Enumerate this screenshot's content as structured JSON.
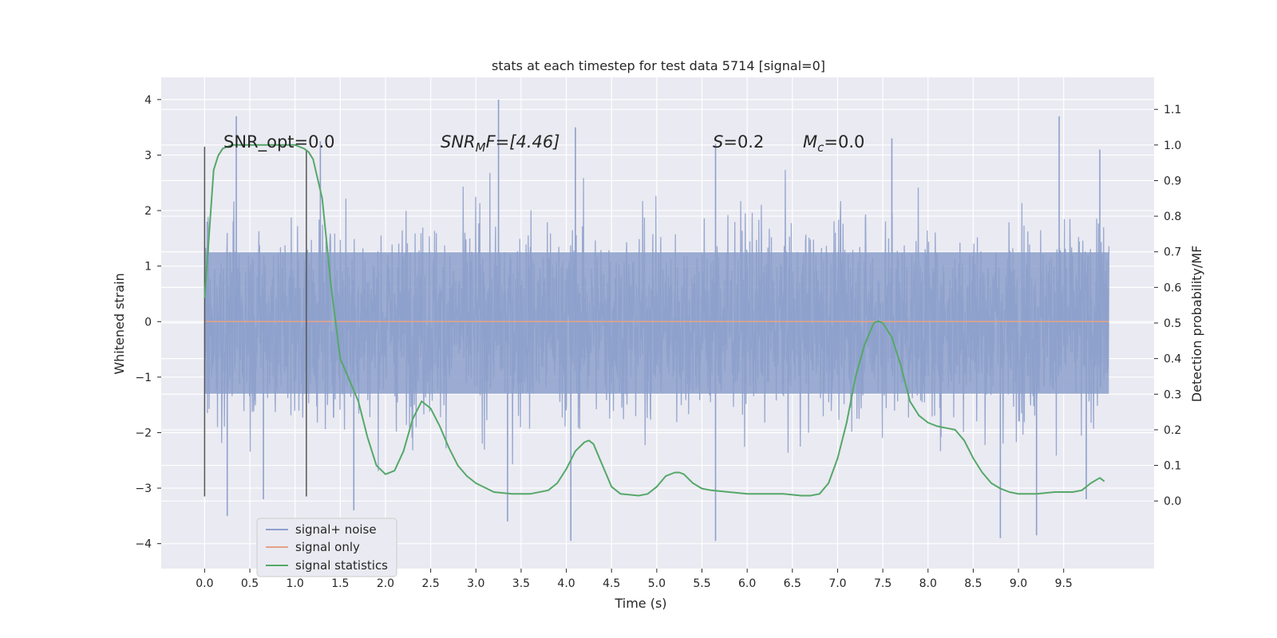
{
  "chart_data": {
    "type": "line",
    "title": "stats at each timestep for test data 5714 [signal=0]",
    "xlabel": "Time (s)",
    "ylabel": "Whitened strain",
    "y2label": "Detection probability/MF",
    "xlim": [
      -0.48,
      10.5
    ],
    "ylim": [
      -4.45,
      4.4
    ],
    "y2lim": [
      -0.19,
      1.19
    ],
    "x_ticks": [
      "0.0",
      "0.5",
      "1.0",
      "1.5",
      "2.0",
      "2.5",
      "3.0",
      "3.5",
      "4.0",
      "4.5",
      "5.0",
      "5.5",
      "6.0",
      "6.5",
      "7.0",
      "7.5",
      "8.0",
      "8.5",
      "9.0",
      "9.5"
    ],
    "y_ticks": [
      "−4",
      "−3",
      "−2",
      "−1",
      "0",
      "1",
      "2",
      "3",
      "4"
    ],
    "y2_ticks": [
      "0.0",
      "0.1",
      "0.2",
      "0.3",
      "0.4",
      "0.5",
      "0.6",
      "0.7",
      "0.8",
      "0.9",
      "1.0",
      "1.1"
    ],
    "grid": true,
    "legend_position": "bottom-left",
    "annotations": {
      "snr_opt": "SNR_opt=0.0",
      "snr_mf_main": "SNR",
      "snr_mf_sub": "M",
      "snr_mf_rest": "F=[4.46]",
      "s_sym": "S",
      "s_val": "=0.2",
      "mc_main": "M",
      "mc_sub": "c",
      "mc_val": "=0.0"
    },
    "markers": [
      {
        "x": 0.0,
        "y_range": [
          -3.15,
          3.15
        ]
      },
      {
        "x": 1.125,
        "y_range": [
          -3.15,
          3.1
        ]
      }
    ],
    "series": [
      {
        "name": "signal+ noise",
        "color": "#8da0cb",
        "style": "dense-noise",
        "x_range": [
          0.0,
          10.0
        ],
        "envelope": [
          1.25,
          -1.3
        ],
        "x_peaks": [
          [
            0.35,
            3.7
          ],
          [
            1.28,
            3.25
          ],
          [
            3.25,
            4.0
          ],
          [
            4.1,
            3.5
          ],
          [
            5.65,
            3.2
          ],
          [
            7.6,
            3.3
          ],
          [
            9.45,
            3.7
          ],
          [
            9.9,
            3.1
          ]
        ],
        "x_troughs": [
          [
            0.25,
            -3.5
          ],
          [
            0.65,
            -3.2
          ],
          [
            1.65,
            -3.4
          ],
          [
            3.35,
            -3.6
          ],
          [
            4.05,
            -3.95
          ],
          [
            5.65,
            -3.95
          ],
          [
            8.8,
            -3.9
          ],
          [
            9.2,
            -3.85
          ],
          [
            9.75,
            -3.2
          ]
        ]
      },
      {
        "name": "signal only",
        "color": "#e5a384",
        "x": [
          0.0,
          10.0
        ],
        "y": [
          0.0,
          0.0
        ]
      },
      {
        "name": "signal statistics",
        "color": "#55a868",
        "axis": "right",
        "x": [
          0.0,
          0.1,
          0.15,
          0.2,
          0.3,
          0.5,
          0.8,
          1.0,
          1.1,
          1.15,
          1.2,
          1.3,
          1.4,
          1.5,
          1.6,
          1.7,
          1.8,
          1.9,
          2.0,
          2.1,
          2.2,
          2.3,
          2.4,
          2.5,
          2.6,
          2.7,
          2.8,
          2.9,
          3.0,
          3.2,
          3.4,
          3.6,
          3.8,
          3.9,
          4.0,
          4.1,
          4.2,
          4.25,
          4.3,
          4.4,
          4.5,
          4.6,
          4.8,
          4.9,
          5.0,
          5.1,
          5.2,
          5.25,
          5.3,
          5.4,
          5.5,
          5.6,
          5.8,
          6.0,
          6.2,
          6.4,
          6.6,
          6.7,
          6.8,
          6.9,
          7.0,
          7.1,
          7.2,
          7.3,
          7.4,
          7.45,
          7.5,
          7.6,
          7.7,
          7.8,
          7.9,
          8.0,
          8.1,
          8.2,
          8.3,
          8.4,
          8.5,
          8.6,
          8.7,
          8.8,
          8.9,
          9.0,
          9.2,
          9.4,
          9.6,
          9.7,
          9.8,
          9.9,
          9.95
        ],
        "y": [
          0.57,
          0.93,
          0.97,
          0.99,
          1.0,
          1.0,
          1.0,
          1.0,
          0.99,
          0.98,
          0.96,
          0.85,
          0.6,
          0.4,
          0.34,
          0.28,
          0.18,
          0.1,
          0.075,
          0.085,
          0.14,
          0.23,
          0.28,
          0.26,
          0.21,
          0.15,
          0.1,
          0.07,
          0.05,
          0.025,
          0.02,
          0.02,
          0.03,
          0.05,
          0.09,
          0.14,
          0.165,
          0.17,
          0.16,
          0.1,
          0.04,
          0.02,
          0.015,
          0.02,
          0.04,
          0.07,
          0.08,
          0.08,
          0.075,
          0.05,
          0.035,
          0.03,
          0.025,
          0.02,
          0.02,
          0.02,
          0.015,
          0.015,
          0.02,
          0.05,
          0.12,
          0.22,
          0.35,
          0.44,
          0.5,
          0.505,
          0.5,
          0.46,
          0.38,
          0.28,
          0.24,
          0.22,
          0.21,
          0.205,
          0.2,
          0.17,
          0.12,
          0.08,
          0.05,
          0.035,
          0.025,
          0.02,
          0.02,
          0.025,
          0.025,
          0.03,
          0.05,
          0.065,
          0.055
        ]
      }
    ]
  }
}
